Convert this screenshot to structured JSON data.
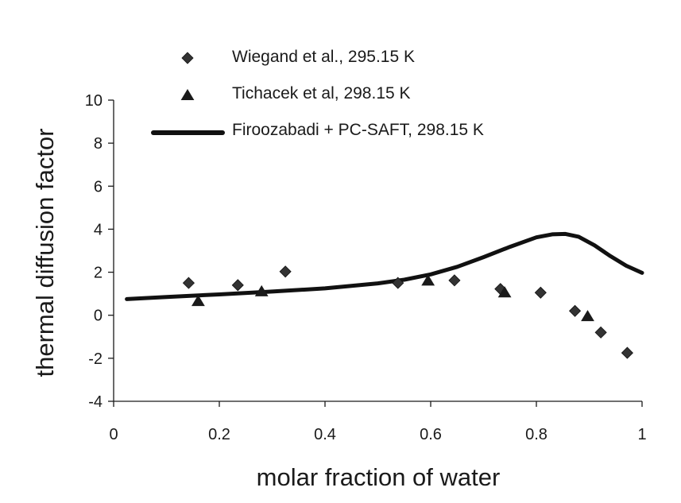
{
  "chart_data": {
    "type": "scatter",
    "title": "",
    "xlabel": "molar fraction of water",
    "ylabel": "thermal diffusion factor",
    "xlim": [
      0,
      1
    ],
    "ylim": [
      -4,
      10
    ],
    "xticks": [
      0,
      0.2,
      0.4,
      0.6,
      0.8,
      1
    ],
    "xtick_labels": [
      "0",
      "0.2",
      "0.4",
      "0.6",
      "0.8",
      "1"
    ],
    "yticks": [
      -4,
      -2,
      0,
      2,
      4,
      6,
      8,
      10
    ],
    "ytick_labels": [
      "-4",
      "-2",
      "0",
      "2",
      "4",
      "6",
      "8",
      "10"
    ],
    "grid": false,
    "legend_position": "top",
    "series": [
      {
        "name": "Wiegand et al., 295.15 K",
        "marker": "diamond",
        "color": "#333333",
        "x": [
          0.142,
          0.235,
          0.325,
          0.538,
          0.645,
          0.732,
          0.808,
          0.873,
          0.922,
          0.972
        ],
        "y": [
          1.5,
          1.4,
          2.03,
          1.5,
          1.62,
          1.22,
          1.05,
          0.2,
          -0.8,
          -1.75
        ]
      },
      {
        "name": "Tichacek et al, 298.15 K",
        "marker": "triangle",
        "color": "#1a1a1a",
        "x": [
          0.16,
          0.28,
          0.595,
          0.74,
          0.897
        ],
        "y": [
          0.65,
          1.1,
          1.6,
          1.05,
          -0.05
        ]
      },
      {
        "name": "Firoozabadi + PC-SAFT, 298.15 K",
        "marker": "line",
        "color": "#111111",
        "x": [
          0.025,
          0.1,
          0.2,
          0.3,
          0.4,
          0.5,
          0.55,
          0.6,
          0.65,
          0.7,
          0.75,
          0.8,
          0.83,
          0.855,
          0.88,
          0.91,
          0.94,
          0.97,
          1.0
        ],
        "y": [
          0.75,
          0.85,
          0.97,
          1.1,
          1.25,
          1.48,
          1.65,
          1.9,
          2.25,
          2.7,
          3.18,
          3.62,
          3.76,
          3.78,
          3.65,
          3.25,
          2.75,
          2.3,
          1.97
        ]
      }
    ]
  }
}
